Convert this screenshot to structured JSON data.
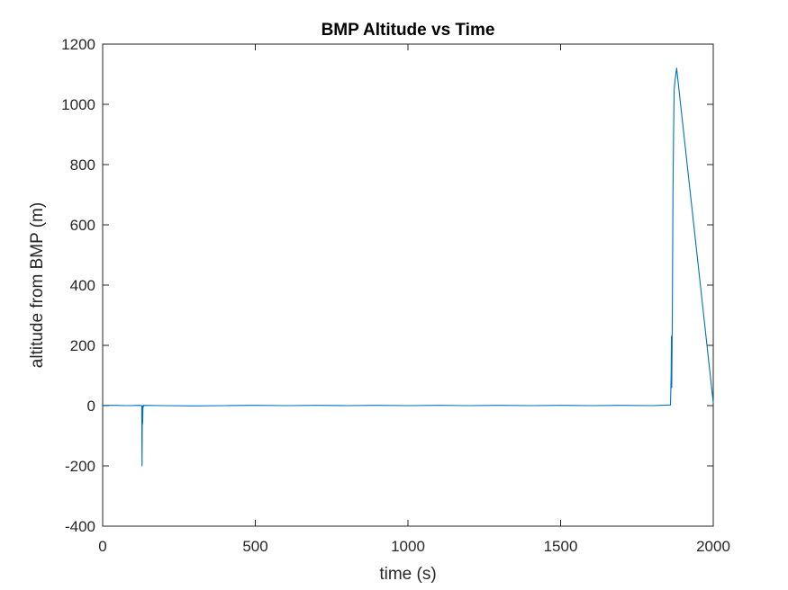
{
  "chart_data": {
    "type": "line",
    "title": "BMP Altitude vs Time",
    "xlabel": "time (s)",
    "ylabel": "altitude from BMP (m)",
    "xlim": [
      0,
      2000
    ],
    "ylim": [
      -400,
      1200
    ],
    "xticks": [
      0,
      500,
      1000,
      1500,
      2000
    ],
    "xtick_labels": [
      "0",
      "500",
      "1000",
      "1500",
      "2000"
    ],
    "yticks": [
      -400,
      -200,
      0,
      200,
      400,
      600,
      800,
      1000,
      1200
    ],
    "ytick_labels": [
      "-400",
      "-200",
      "0",
      "200",
      "400",
      "600",
      "800",
      "1000",
      "1200"
    ],
    "grid": false,
    "series": [
      {
        "color": "#0072bd",
        "points": [
          [
            0,
            1
          ],
          [
            40,
            1
          ],
          [
            80,
            0
          ],
          [
            120,
            1
          ],
          [
            128,
            0
          ],
          [
            129,
            -200
          ],
          [
            130,
            0
          ],
          [
            131,
            -60
          ],
          [
            132,
            0
          ],
          [
            133,
            -5
          ],
          [
            134,
            1
          ],
          [
            200,
            0
          ],
          [
            300,
            -1
          ],
          [
            400,
            0
          ],
          [
            500,
            1
          ],
          [
            600,
            0
          ],
          [
            700,
            1
          ],
          [
            800,
            0
          ],
          [
            900,
            1
          ],
          [
            1000,
            0
          ],
          [
            1100,
            1
          ],
          [
            1200,
            0
          ],
          [
            1300,
            1
          ],
          [
            1400,
            0
          ],
          [
            1500,
            1
          ],
          [
            1600,
            0
          ],
          [
            1700,
            1
          ],
          [
            1800,
            0
          ],
          [
            1860,
            2
          ],
          [
            1862,
            100
          ],
          [
            1863,
            230
          ],
          [
            1864,
            60
          ],
          [
            1866,
            300
          ],
          [
            1868,
            700
          ],
          [
            1870,
            900
          ],
          [
            1872,
            1050
          ],
          [
            1875,
            1080
          ],
          [
            1880,
            1120
          ],
          [
            2000,
            10
          ]
        ]
      }
    ]
  }
}
